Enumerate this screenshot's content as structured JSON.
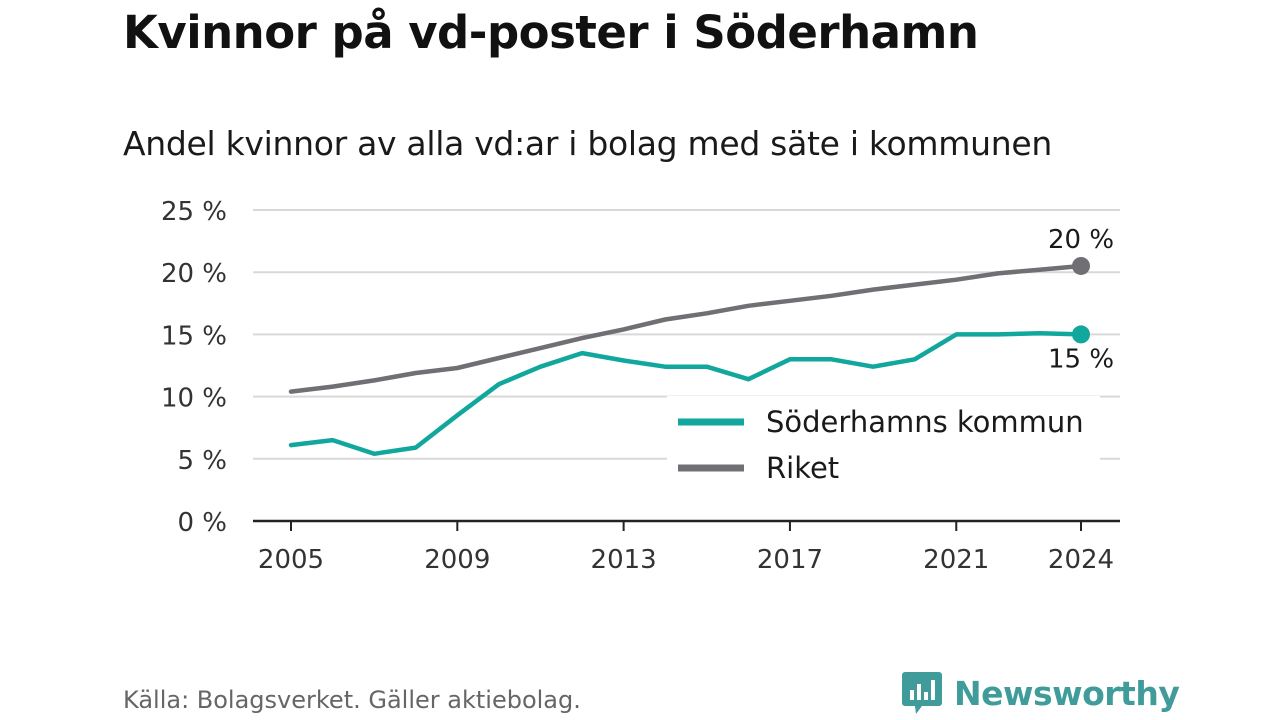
{
  "title": "Kvinnor på vd-poster i Söderhamn",
  "subtitle": "Andel kvinnor av alla vd:ar i bolag med säte i kommunen",
  "footer": {
    "source": "Källa: Bolagsverket. Gäller aktiebolag.",
    "brand": "Newsworthy"
  },
  "colors": {
    "soderhamn": "#12a79d",
    "riket": "#6f6f74",
    "grid": "#d9d9d9",
    "brand": "#3f9c9a"
  },
  "icons": {
    "brand_logo": "bar-chart-speech-bubble-icon"
  },
  "chart_data": {
    "type": "line",
    "x": [
      2005,
      2006,
      2007,
      2008,
      2009,
      2010,
      2011,
      2012,
      2013,
      2014,
      2015,
      2016,
      2017,
      2018,
      2019,
      2020,
      2021,
      2022,
      2023,
      2024
    ],
    "series": [
      {
        "name": "Söderhamns kommun",
        "color": "#12a79d",
        "values": [
          6.1,
          6.5,
          5.4,
          5.9,
          8.5,
          11.0,
          12.4,
          13.5,
          12.9,
          12.4,
          12.4,
          11.4,
          13.0,
          13.0,
          12.4,
          13.0,
          15.0,
          15.0,
          15.1,
          15.0
        ],
        "end_label": "15 %"
      },
      {
        "name": "Riket",
        "color": "#6f6f74",
        "values": [
          10.4,
          10.8,
          11.3,
          11.9,
          12.3,
          13.1,
          13.9,
          14.7,
          15.4,
          16.2,
          16.7,
          17.3,
          17.7,
          18.1,
          18.6,
          19.0,
          19.4,
          19.9,
          20.2,
          20.5
        ],
        "end_label": "20 %"
      }
    ],
    "xticks": [
      2005,
      2009,
      2013,
      2017,
      2021,
      2024
    ],
    "yticks": [
      0,
      5,
      10,
      15,
      20,
      25
    ],
    "ytick_labels": [
      "0 %",
      "5 %",
      "10 %",
      "15 %",
      "20 %",
      "25 %"
    ],
    "ylim": [
      0,
      25
    ],
    "xlim": [
      2005,
      2024
    ],
    "grid": true,
    "legend_position": "bottom-right",
    "xlabel": "",
    "ylabel": ""
  }
}
